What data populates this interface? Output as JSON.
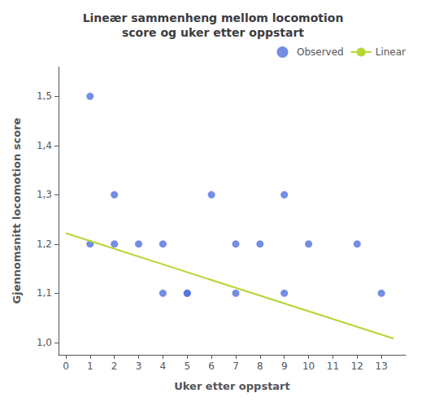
{
  "chart_data": {
    "type": "scatter",
    "title": "Lineær sammenheng mellom locomotion\nscore og uker etter oppstart",
    "xlabel": "Uker etter oppstart",
    "ylabel": "Gjennomsnitt locomotion score",
    "series": [
      {
        "name": "Observed",
        "type": "scatter",
        "marker": "circle",
        "x": [
          1,
          1,
          2,
          2,
          3,
          4,
          4,
          5,
          5,
          6,
          7,
          7,
          8,
          9,
          9,
          10,
          12,
          13
        ],
        "values": [
          1.5,
          1.2,
          1.3,
          1.2,
          1.2,
          1.2,
          1.1,
          1.1,
          1.1,
          1.3,
          1.2,
          1.1,
          1.2,
          1.3,
          1.1,
          1.2,
          1.2,
          1.1
        ]
      },
      {
        "name": "Linear",
        "type": "line",
        "line_style": "solid",
        "x": [
          0,
          13.5
        ],
        "values": [
          1.222,
          1.008
        ]
      }
    ],
    "xlim": [
      -0.3,
      14.0
    ],
    "ylim": [
      0.975,
      1.56
    ],
    "xticks": [
      0,
      1,
      2,
      3,
      4,
      5,
      6,
      7,
      8,
      9,
      10,
      11,
      12,
      13
    ],
    "yticks": [
      {
        "value": 1.0,
        "label": "1,0"
      },
      {
        "value": 1.1,
        "label": "1,1"
      },
      {
        "value": 1.2,
        "label": "1,2"
      },
      {
        "value": 1.3,
        "label": "1,3"
      },
      {
        "value": 1.4,
        "label": "1,4"
      },
      {
        "value": 1.5,
        "label": "1,5"
      }
    ],
    "grid": false,
    "legend": "upper right"
  }
}
